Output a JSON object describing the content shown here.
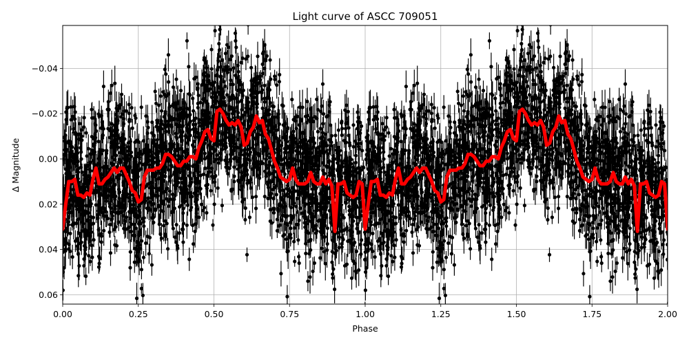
{
  "chart_data": {
    "type": "scatter",
    "title": "Light curve of ASCC 709051",
    "xlabel": "Phase",
    "ylabel": "Δ Magnitude",
    "xlim": [
      0.0,
      2.0
    ],
    "ylim": [
      0.0644,
      -0.0589
    ],
    "y_inverted": true,
    "grid": true,
    "x_ticks": [
      "0.00",
      "0.25",
      "0.50",
      "0.75",
      "1.00",
      "1.25",
      "1.50",
      "1.75",
      "2.00"
    ],
    "y_ticks": [
      "−0.04",
      "−0.02",
      "0.00",
      "0.02",
      "0.04",
      "0.06"
    ],
    "series": [
      {
        "name": "observations",
        "style": "black points with vertical error bars",
        "color": "#000000",
        "note": "dense folded photometry, roughly ±0.04 mag scatter around the binned curve"
      },
      {
        "name": "binned model",
        "style": "thick red line",
        "color": "#ff0000",
        "x": [
          0.0,
          0.01,
          0.02,
          0.03,
          0.04,
          0.05,
          0.06,
          0.07,
          0.08,
          0.09,
          0.1,
          0.11,
          0.12,
          0.13,
          0.14,
          0.15,
          0.16,
          0.17,
          0.18,
          0.19,
          0.2,
          0.21,
          0.22,
          0.23,
          0.24,
          0.25,
          0.26,
          0.27,
          0.28,
          0.29,
          0.3,
          0.31,
          0.32,
          0.33,
          0.34,
          0.35,
          0.36,
          0.37,
          0.38,
          0.39,
          0.4,
          0.41,
          0.42,
          0.43,
          0.44,
          0.45,
          0.46,
          0.47,
          0.48,
          0.49,
          0.5,
          0.51,
          0.52,
          0.53,
          0.54,
          0.55,
          0.56,
          0.57,
          0.58,
          0.59,
          0.6,
          0.61,
          0.62,
          0.63,
          0.64,
          0.65,
          0.66,
          0.67,
          0.68,
          0.69,
          0.7,
          0.71,
          0.72,
          0.73,
          0.74,
          0.75,
          0.76,
          0.77,
          0.78,
          0.79,
          0.8,
          0.81,
          0.82,
          0.83,
          0.84,
          0.85,
          0.86,
          0.87,
          0.88,
          0.89,
          0.9,
          0.91,
          0.92,
          0.93,
          0.94,
          0.95,
          0.96,
          0.97,
          0.98,
          0.99,
          1.0
        ],
        "values": [
          0.031,
          0.02,
          0.01,
          0.01,
          0.009,
          0.016,
          0.016,
          0.017,
          0.015,
          0.016,
          0.009,
          0.004,
          0.011,
          0.011,
          0.009,
          0.008,
          0.006,
          0.004,
          0.006,
          0.004,
          0.004,
          0.007,
          0.01,
          0.014,
          0.015,
          0.019,
          0.018,
          0.008,
          0.005,
          0.005,
          0.005,
          0.004,
          0.004,
          0.002,
          -0.002,
          -0.002,
          -0.001,
          0.001,
          0.003,
          0.003,
          0.001,
          0.001,
          -0.001,
          -0.001,
          0.0,
          -0.005,
          -0.008,
          -0.012,
          -0.013,
          -0.009,
          -0.008,
          -0.021,
          -0.022,
          -0.02,
          -0.017,
          -0.015,
          -0.016,
          -0.015,
          -0.017,
          -0.014,
          -0.006,
          -0.007,
          -0.012,
          -0.014,
          -0.019,
          -0.016,
          -0.017,
          -0.011,
          -0.009,
          -0.004,
          0.001,
          0.004,
          0.008,
          0.009,
          0.01,
          0.009,
          0.004,
          0.009,
          0.011,
          0.011,
          0.011,
          0.01,
          0.006,
          0.01,
          0.011,
          0.011,
          0.008,
          0.011,
          0.009,
          0.012,
          0.032,
          0.011,
          0.011,
          0.01,
          0.015,
          0.016,
          0.017,
          0.016,
          0.01,
          0.011,
          0.031
        ]
      }
    ]
  }
}
